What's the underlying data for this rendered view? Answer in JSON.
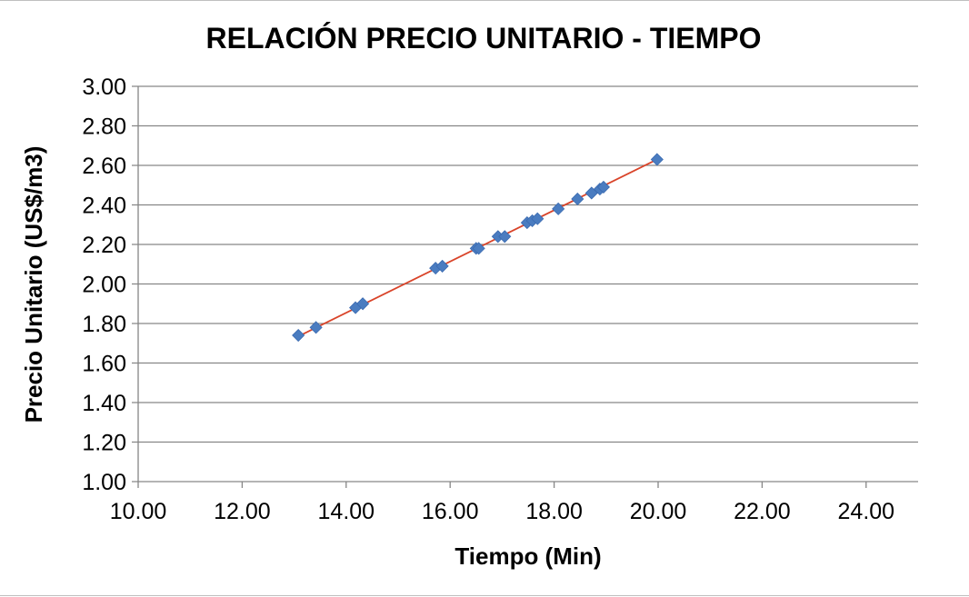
{
  "chart_data": {
    "type": "scatter",
    "title": "RELACIÓN PRECIO UNITARIO - TIEMPO",
    "xlabel": "Tiempo (Min)",
    "ylabel": "Precio Unitario (US$/m3)",
    "xlim": [
      10,
      25
    ],
    "ylim": [
      1.0,
      3.0
    ],
    "x_ticks": [
      "10.00",
      "12.00",
      "14.00",
      "16.00",
      "18.00",
      "20.00",
      "22.00",
      "24.00"
    ],
    "y_ticks": [
      "1.00",
      "1.20",
      "1.40",
      "1.60",
      "1.80",
      "2.00",
      "2.20",
      "2.40",
      "2.60",
      "2.80",
      "3.00"
    ],
    "grid": true,
    "legend": "none",
    "series": [
      {
        "color": "#4a7cc0",
        "marker": "diamond",
        "points": [
          {
            "x": 13.08,
            "y": 1.74
          },
          {
            "x": 13.42,
            "y": 1.78
          },
          {
            "x": 14.18,
            "y": 1.88
          },
          {
            "x": 14.32,
            "y": 1.9
          },
          {
            "x": 15.72,
            "y": 2.08
          },
          {
            "x": 15.85,
            "y": 2.09
          },
          {
            "x": 16.5,
            "y": 2.18
          },
          {
            "x": 16.55,
            "y": 2.18
          },
          {
            "x": 16.92,
            "y": 2.24
          },
          {
            "x": 17.05,
            "y": 2.24
          },
          {
            "x": 17.48,
            "y": 2.31
          },
          {
            "x": 17.58,
            "y": 2.32
          },
          {
            "x": 17.68,
            "y": 2.33
          },
          {
            "x": 18.08,
            "y": 2.38
          },
          {
            "x": 18.45,
            "y": 2.43
          },
          {
            "x": 18.72,
            "y": 2.46
          },
          {
            "x": 18.88,
            "y": 2.48
          },
          {
            "x": 18.95,
            "y": 2.49
          },
          {
            "x": 19.98,
            "y": 2.63
          }
        ]
      }
    ],
    "trendline": {
      "color": "#d9442a",
      "from": {
        "x": 13.08,
        "y": 1.735
      },
      "to": {
        "x": 19.98,
        "y": 2.63
      }
    }
  }
}
